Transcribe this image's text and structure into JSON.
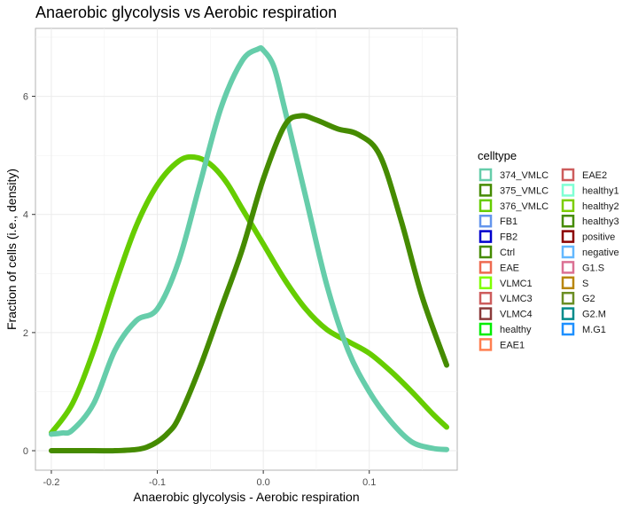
{
  "chart_data": {
    "type": "line",
    "title": "Anaerobic glycolysis vs Aerobic respiration",
    "xlabel": "Anaerobic glycolysis - Aerobic respiration",
    "ylabel": "Fraction of cells (i.e., density)",
    "xlim": [
      -0.215,
      0.183
    ],
    "ylim": [
      -0.33,
      7.15
    ],
    "x_ticks": [
      -0.2,
      -0.1,
      0.0,
      0.1
    ],
    "x_tick_labels": [
      "-0.2",
      "-0.1",
      "0.0",
      "0.1"
    ],
    "y_ticks": [
      0,
      2,
      4,
      6
    ],
    "y_tick_labels": [
      "0",
      "2",
      "4",
      "6"
    ],
    "grid": true,
    "legend_position": "right",
    "legend": {
      "title": "celltype",
      "entries": [
        {
          "label": "374_VMLC",
          "color": "#66CDAA"
        },
        {
          "label": "375_VMLC",
          "color": "#458B00"
        },
        {
          "label": "376_VMLC",
          "color": "#66CD00"
        },
        {
          "label": "FB1",
          "color": "#6495ED"
        },
        {
          "label": "FB2",
          "color": "#0000CD"
        },
        {
          "label": "Ctrl",
          "color": "#458B00"
        },
        {
          "label": "EAE",
          "color": "#EE6A50"
        },
        {
          "label": "VLMC1",
          "color": "#7FFF00"
        },
        {
          "label": "VLMC3",
          "color": "#CD5C5C"
        },
        {
          "label": "VLMC4",
          "color": "#8B3A3A"
        },
        {
          "label": "healthy",
          "color": "#00EE00"
        },
        {
          "label": "EAE1",
          "color": "#FF7F50"
        },
        {
          "label": "EAE2",
          "color": "#CD5C5C"
        },
        {
          "label": "healthy1",
          "color": "#7FFFD4"
        },
        {
          "label": "healthy2",
          "color": "#7CCD00"
        },
        {
          "label": "healthy3",
          "color": "#458B00"
        },
        {
          "label": "positive",
          "color": "#8B0000"
        },
        {
          "label": "negative",
          "color": "#63B8FF"
        },
        {
          "label": "G1.S",
          "color": "#DB7093"
        },
        {
          "label": "S",
          "color": "#B8860B"
        },
        {
          "label": "G2",
          "color": "#6B8E23"
        },
        {
          "label": "G2.M",
          "color": "#008B8B"
        },
        {
          "label": "M.G1",
          "color": "#1E90FF"
        }
      ]
    },
    "series": [
      {
        "name": "376_VMLC",
        "color": "#66CD00",
        "x": [
          -0.2,
          -0.18,
          -0.16,
          -0.14,
          -0.12,
          -0.1,
          -0.08,
          -0.065,
          -0.05,
          -0.035,
          -0.02,
          0.0,
          0.02,
          0.04,
          0.06,
          0.08,
          0.1,
          0.12,
          0.14,
          0.16,
          0.173
        ],
        "y": [
          0.3,
          0.8,
          1.7,
          2.8,
          3.8,
          4.5,
          4.9,
          4.97,
          4.85,
          4.55,
          4.1,
          3.5,
          2.9,
          2.4,
          2.05,
          1.85,
          1.65,
          1.35,
          1.0,
          0.62,
          0.4
        ]
      },
      {
        "name": "374_VMLC",
        "color": "#66CDAA",
        "x": [
          -0.2,
          -0.19,
          -0.18,
          -0.16,
          -0.14,
          -0.12,
          -0.1,
          -0.08,
          -0.06,
          -0.04,
          -0.02,
          -0.005,
          0.0,
          0.01,
          0.02,
          0.04,
          0.06,
          0.08,
          0.1,
          0.12,
          0.14,
          0.16,
          0.173
        ],
        "y": [
          0.28,
          0.3,
          0.35,
          0.8,
          1.7,
          2.2,
          2.4,
          3.2,
          4.5,
          5.8,
          6.6,
          6.8,
          6.78,
          6.5,
          5.8,
          4.3,
          2.8,
          1.7,
          1.0,
          0.5,
          0.15,
          0.04,
          0.02
        ]
      },
      {
        "name": "375_VMLC",
        "color": "#458B00",
        "x": [
          -0.2,
          -0.16,
          -0.14,
          -0.12,
          -0.11,
          -0.1,
          -0.09,
          -0.08,
          -0.06,
          -0.04,
          -0.02,
          0.0,
          0.02,
          0.035,
          0.05,
          0.07,
          0.09,
          0.11,
          0.13,
          0.15,
          0.173
        ],
        "y": [
          0.0,
          0.0,
          0.0,
          0.02,
          0.06,
          0.15,
          0.3,
          0.55,
          1.4,
          2.4,
          3.4,
          4.6,
          5.5,
          5.67,
          5.6,
          5.45,
          5.35,
          5.0,
          3.9,
          2.6,
          1.45
        ]
      }
    ]
  }
}
